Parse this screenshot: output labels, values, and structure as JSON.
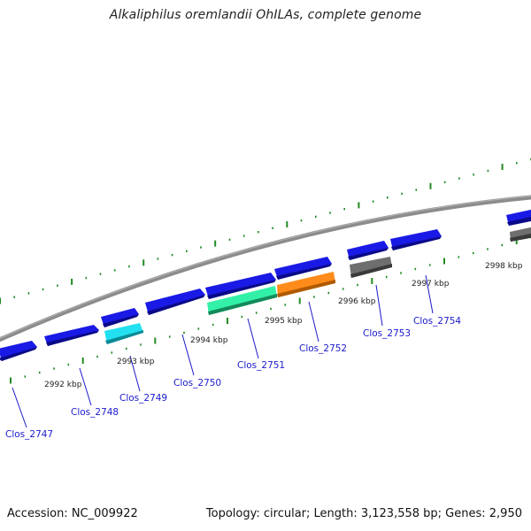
{
  "header": {
    "title": "Alkaliphilus oremlandii OhILAs, complete genome"
  },
  "footer": {
    "accession": "Accession: NC_009922",
    "info": "Topology: circular; Length: 3,123,558 bp; Genes: 2,950"
  },
  "colors": {
    "backbone": "#8c8c8c",
    "gene_default": "#1a1ae6",
    "gene_cyan": "#22e0f0",
    "gene_green": "#33f0a8",
    "gene_orange": "#ff8c1a",
    "gene_grey": "#6e6e6e",
    "ticks": "#228b22",
    "label": "#1a1acc"
  },
  "map": {
    "kbp_labels": [
      "2992 kbp",
      "2993 kbp",
      "2994 kbp",
      "2995 kbp",
      "2996 kbp",
      "2997 kbp",
      "2998 kbp"
    ],
    "gene_labels": [
      "Clos_2747",
      "Clos_2748",
      "Clos_2749",
      "Clos_2750",
      "Clos_2751",
      "Clos_2752",
      "Clos_2753",
      "Clos_2754"
    ]
  }
}
